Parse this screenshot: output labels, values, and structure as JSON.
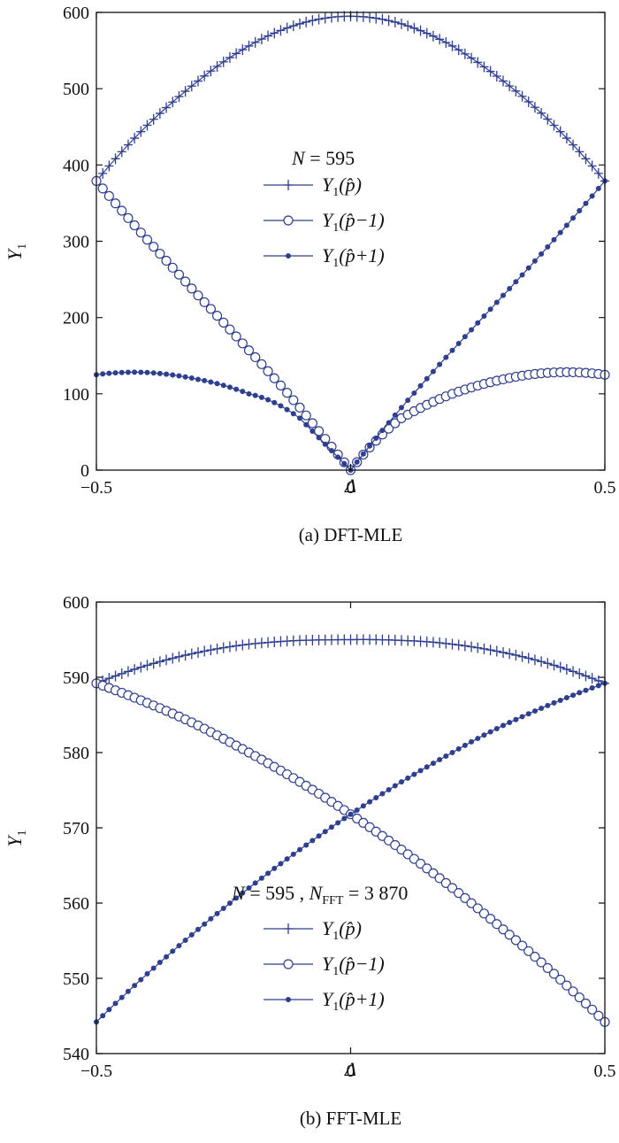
{
  "colors": {
    "series": "#2e3f8f",
    "axis": "#111111"
  },
  "chart_data": [
    {
      "type": "line",
      "caption": "(a) DFT-MLE",
      "xlabel": "Δ",
      "ylabel": {
        "base": "Y",
        "sub": "1"
      },
      "xlim": [
        -0.5,
        0.5
      ],
      "ylim": [
        0,
        600
      ],
      "xticks": [
        "-0.5",
        "0",
        "0.5"
      ],
      "yticks": [
        "0",
        "100",
        "200",
        "300",
        "400",
        "500",
        "600"
      ],
      "grid": false,
      "legend_position": "center",
      "legend_header": {
        "text": "N = 595"
      },
      "series": [
        {
          "name": "Y1(p̂)",
          "marker": "plus",
          "x": [
            -0.5,
            -0.4,
            -0.3,
            -0.2,
            -0.1,
            0,
            0.1,
            0.2,
            0.3,
            0.4,
            0.5
          ],
          "values": [
            379,
            452,
            510,
            556,
            585,
            595,
            585,
            556,
            510,
            452,
            379
          ]
        },
        {
          "name": "Y1(p̂−1)",
          "marker": "circle",
          "x": [
            -0.5,
            -0.4,
            -0.3,
            -0.2,
            -0.1,
            0,
            0.1,
            0.2,
            0.3,
            0.4,
            0.5
          ],
          "values": [
            379,
            302,
            229,
            157,
            82,
            0,
            68,
            100,
            119,
            128,
            125
          ]
        },
        {
          "name": "Y1(p̂+1)",
          "marker": "dot",
          "x": [
            -0.5,
            -0.4,
            -0.3,
            -0.2,
            -0.1,
            0,
            0.1,
            0.2,
            0.3,
            0.4,
            0.5
          ],
          "values": [
            125,
            128,
            119,
            100,
            68,
            0,
            82,
            157,
            229,
            302,
            379
          ]
        }
      ],
      "legend_entries": [
        {
          "base": "Y",
          "sub": "1",
          "arg": "(p̂)"
        },
        {
          "base": "Y",
          "sub": "1",
          "arg": "(p̂−1)"
        },
        {
          "base": "Y",
          "sub": "1",
          "arg": "(p̂+1)"
        }
      ]
    },
    {
      "type": "line",
      "caption": "(b) FFT-MLE",
      "xlabel": "Δ",
      "ylabel": {
        "base": "Y",
        "sub": "1"
      },
      "xlim": [
        -0.5,
        0.5
      ],
      "ylim": [
        540,
        600
      ],
      "xticks": [
        "-0.5",
        "0",
        "0.5"
      ],
      "yticks": [
        "540",
        "550",
        "560",
        "570",
        "580",
        "590",
        "600"
      ],
      "grid": false,
      "legend_position": "bottom-center",
      "legend_header": {
        "text": "N = 595 , N",
        "sub": "FFT",
        "tail": " = 3 870"
      },
      "series": [
        {
          "name": "Y1(p̂)",
          "marker": "plus",
          "x": [
            -0.5,
            -0.4,
            -0.3,
            -0.2,
            -0.1,
            0,
            0.1,
            0.2,
            0.3,
            0.4,
            0.5
          ],
          "values": [
            589.2,
            591.6,
            593.3,
            594.4,
            594.9,
            595,
            594.9,
            594.4,
            593.3,
            591.6,
            589.2
          ]
        },
        {
          "name": "Y1(p̂−1)",
          "marker": "circle",
          "x": [
            -0.5,
            -0.4,
            -0.3,
            -0.2,
            -0.1,
            0,
            0.1,
            0.2,
            0.3,
            0.4,
            0.5
          ],
          "values": [
            589.2,
            586.6,
            583.6,
            580.0,
            576.1,
            571.8,
            567.1,
            562.0,
            556.5,
            550.6,
            544.2
          ]
        },
        {
          "name": "Y1(p̂+1)",
          "marker": "dot",
          "x": [
            -0.5,
            -0.4,
            -0.3,
            -0.2,
            -0.1,
            0,
            0.1,
            0.2,
            0.3,
            0.4,
            0.5
          ],
          "values": [
            544.2,
            550.6,
            556.5,
            562.0,
            567.1,
            571.8,
            576.1,
            580.0,
            583.6,
            586.6,
            589.2
          ]
        }
      ],
      "legend_entries": [
        {
          "base": "Y",
          "sub": "1",
          "arg": "(p̂)"
        },
        {
          "base": "Y",
          "sub": "1",
          "arg": "(p̂−1)"
        },
        {
          "base": "Y",
          "sub": "1",
          "arg": "(p̂+1)"
        }
      ]
    }
  ]
}
